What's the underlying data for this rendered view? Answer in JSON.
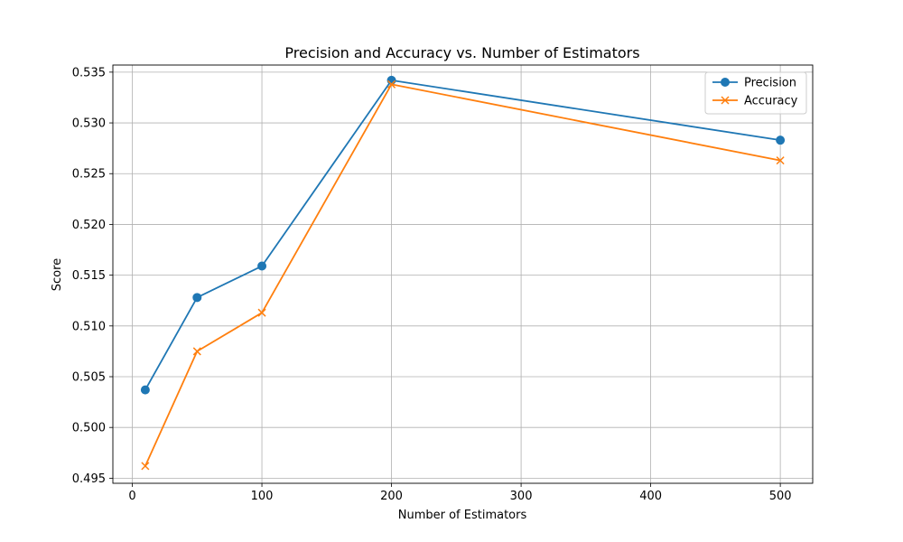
{
  "chart_data": {
    "type": "line",
    "title": "Precision and Accuracy vs. Number of Estimators",
    "xlabel": "Number of Estimators",
    "ylabel": "Score",
    "x": [
      10,
      50,
      100,
      200,
      500
    ],
    "xlim": [
      -15,
      525
    ],
    "ylim": [
      0.4945,
      0.5357
    ],
    "xticks": [
      0,
      100,
      200,
      300,
      400,
      500
    ],
    "xtick_labels": [
      "0",
      "100",
      "200",
      "300",
      "400",
      "500"
    ],
    "yticks": [
      0.495,
      0.5,
      0.505,
      0.51,
      0.515,
      0.52,
      0.525,
      0.53,
      0.535
    ],
    "ytick_labels": [
      "0.495",
      "0.500",
      "0.505",
      "0.510",
      "0.515",
      "0.520",
      "0.525",
      "0.530",
      "0.535"
    ],
    "grid": true,
    "legend_position": "top-right",
    "series": [
      {
        "name": "Precision",
        "color": "#1f77b4",
        "marker": "circle",
        "values": [
          0.5037,
          0.5128,
          0.5159,
          0.5342,
          0.5283
        ]
      },
      {
        "name": "Accuracy",
        "color": "#ff7f0e",
        "marker": "x",
        "values": [
          0.4962,
          0.5075,
          0.5113,
          0.5338,
          0.5263
        ]
      }
    ]
  }
}
